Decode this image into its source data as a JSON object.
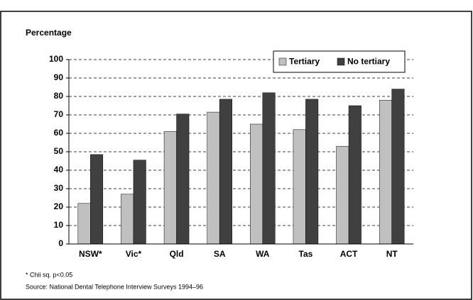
{
  "chart_data": {
    "type": "bar",
    "y_label": "Percentage",
    "categories": [
      "NSW*",
      "Vic*",
      "Qld",
      "SA",
      "WA",
      "Tas",
      "ACT",
      "NT"
    ],
    "series": [
      {
        "name": "Tertiary",
        "color": "#c0c0c0",
        "values": [
          22,
          27,
          61,
          71.5,
          65,
          62,
          53,
          78
        ]
      },
      {
        "name": "No tertiary",
        "color": "#404040",
        "values": [
          48.5,
          45.5,
          70.5,
          78.5,
          82,
          78.5,
          75,
          84
        ]
      }
    ],
    "ylim": [
      0,
      100
    ],
    "yticks": [
      0,
      10,
      20,
      30,
      40,
      50,
      60,
      70,
      80,
      90,
      100
    ],
    "grid": true,
    "legend": "upper right",
    "notes": [
      "* Chii sq. p<0.05",
      "Source: National Dental Telephone Interview Surveys 1994–96"
    ]
  }
}
